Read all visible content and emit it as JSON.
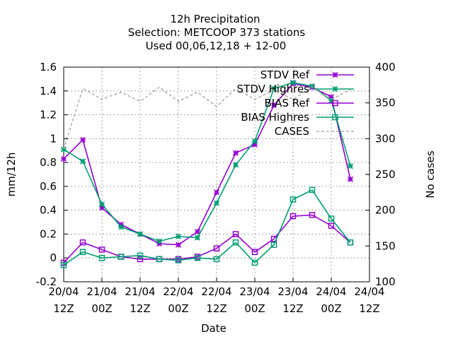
{
  "chart_data": {
    "type": "line",
    "title_lines": [
      "12h Precipitation",
      "Selection: METCOOP     373 stations",
      "Used  00,06,12,18 + 12-00"
    ],
    "xlabel": "Date",
    "ylabel": "mm/12h",
    "y2label": "No cases",
    "ylim": [
      -0.2,
      1.6
    ],
    "y2lim": [
      100,
      400
    ],
    "yticks": [
      "-0.2",
      "0",
      "0.2",
      "0.4",
      "0.6",
      "0.8",
      "1",
      "1.2",
      "1.4",
      "1.6"
    ],
    "y2ticks": [
      "100",
      "150",
      "200",
      "250",
      "300",
      "350",
      "400"
    ],
    "xtick_values": [
      0,
      12,
      24,
      36,
      48,
      60,
      72,
      84,
      96
    ],
    "xticks": [
      [
        "20/04",
        "12Z"
      ],
      [
        "21/04",
        "00Z"
      ],
      [
        "21/04",
        "12Z"
      ],
      [
        "22/04",
        "00Z"
      ],
      [
        "22/04",
        "12Z"
      ],
      [
        "23/04",
        "00Z"
      ],
      [
        "23/04",
        "12Z"
      ],
      [
        "24/04",
        "00Z"
      ],
      [
        "24/04",
        "12Z"
      ]
    ],
    "x_hours": [
      0,
      6,
      12,
      18,
      24,
      30,
      36,
      42,
      48,
      54,
      60,
      66,
      72,
      78,
      84,
      90,
      96
    ],
    "grid": true,
    "legend_position": "top-right",
    "colors": {
      "ref": "#9400d3",
      "highres": "#009e73",
      "cases": "#a0a0a0"
    },
    "series": [
      {
        "name": "STDV Ref",
        "axis": "y",
        "color": "#9400d3",
        "marker": "star",
        "values": [
          0.83,
          0.99,
          0.42,
          0.28,
          0.2,
          0.12,
          0.11,
          0.22,
          0.55,
          0.88,
          0.95,
          1.28,
          1.46,
          1.43,
          1.35,
          0.66
        ]
      },
      {
        "name": "STDV Highres",
        "axis": "y",
        "color": "#009e73",
        "marker": "star",
        "values": [
          0.91,
          0.81,
          0.45,
          0.26,
          0.2,
          0.14,
          0.18,
          0.17,
          0.46,
          0.78,
          0.98,
          1.42,
          1.47,
          1.44,
          1.32,
          0.77
        ]
      },
      {
        "name": "BIAS Ref",
        "axis": "y",
        "color": "#9400d3",
        "marker": "square",
        "values": [
          -0.04,
          0.13,
          0.07,
          0.01,
          -0.01,
          -0.01,
          -0.01,
          0.01,
          0.08,
          0.2,
          0.05,
          0.16,
          0.35,
          0.36,
          0.27,
          0.13
        ]
      },
      {
        "name": "BIAS Highres",
        "axis": "y",
        "color": "#009e73",
        "marker": "square",
        "values": [
          -0.06,
          0.05,
          0.0,
          0.01,
          0.02,
          -0.01,
          -0.02,
          -0.0,
          -0.01,
          0.13,
          -0.04,
          0.11,
          0.49,
          0.57,
          0.33,
          0.13
        ]
      },
      {
        "name": "CASES",
        "axis": "y2",
        "color": "#a0a0a0",
        "marker": "none",
        "dashed": true,
        "values": [
          285,
          370,
          355,
          365,
          352,
          372,
          352,
          365,
          345,
          370,
          355,
          368,
          355,
          372,
          355,
          368
        ]
      }
    ]
  }
}
